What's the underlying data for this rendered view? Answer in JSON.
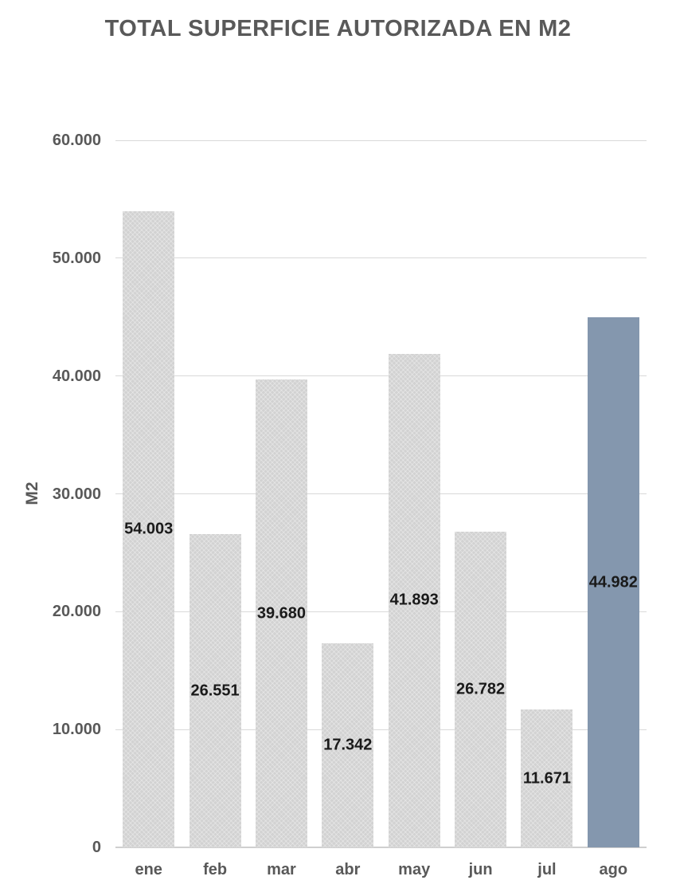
{
  "chart_data": {
    "type": "bar",
    "title": "TOTAL SUPERFICIE AUTORIZADA EN M2",
    "ylabel": "M2",
    "xlabel": "",
    "categories": [
      "ene",
      "feb",
      "mar",
      "abr",
      "may",
      "jun",
      "jul",
      "ago"
    ],
    "values": [
      54003,
      26551,
      39680,
      17342,
      41893,
      26782,
      11671,
      44982
    ],
    "value_labels": [
      "54.003",
      "26.551",
      "39.680",
      "17.342",
      "41.893",
      "26.782",
      "11.671",
      "44.982"
    ],
    "ylim": [
      0,
      60000
    ],
    "ytick_step": 10000,
    "ytick_labels": [
      "0",
      "10.000",
      "20.000",
      "30.000",
      "40.000",
      "50.000",
      "60.000"
    ],
    "grid": true,
    "legend": false,
    "highlight_index": 7,
    "colors": {
      "bar_default": "#d2d2d2",
      "bar_highlight": "#8497ae",
      "gridline": "#d9d9d9",
      "axis_line": "#cfcfcf",
      "axis_text": "#595959",
      "title_text": "#595959",
      "value_label_text": "#1a1a1a",
      "background": "#ffffff"
    }
  }
}
